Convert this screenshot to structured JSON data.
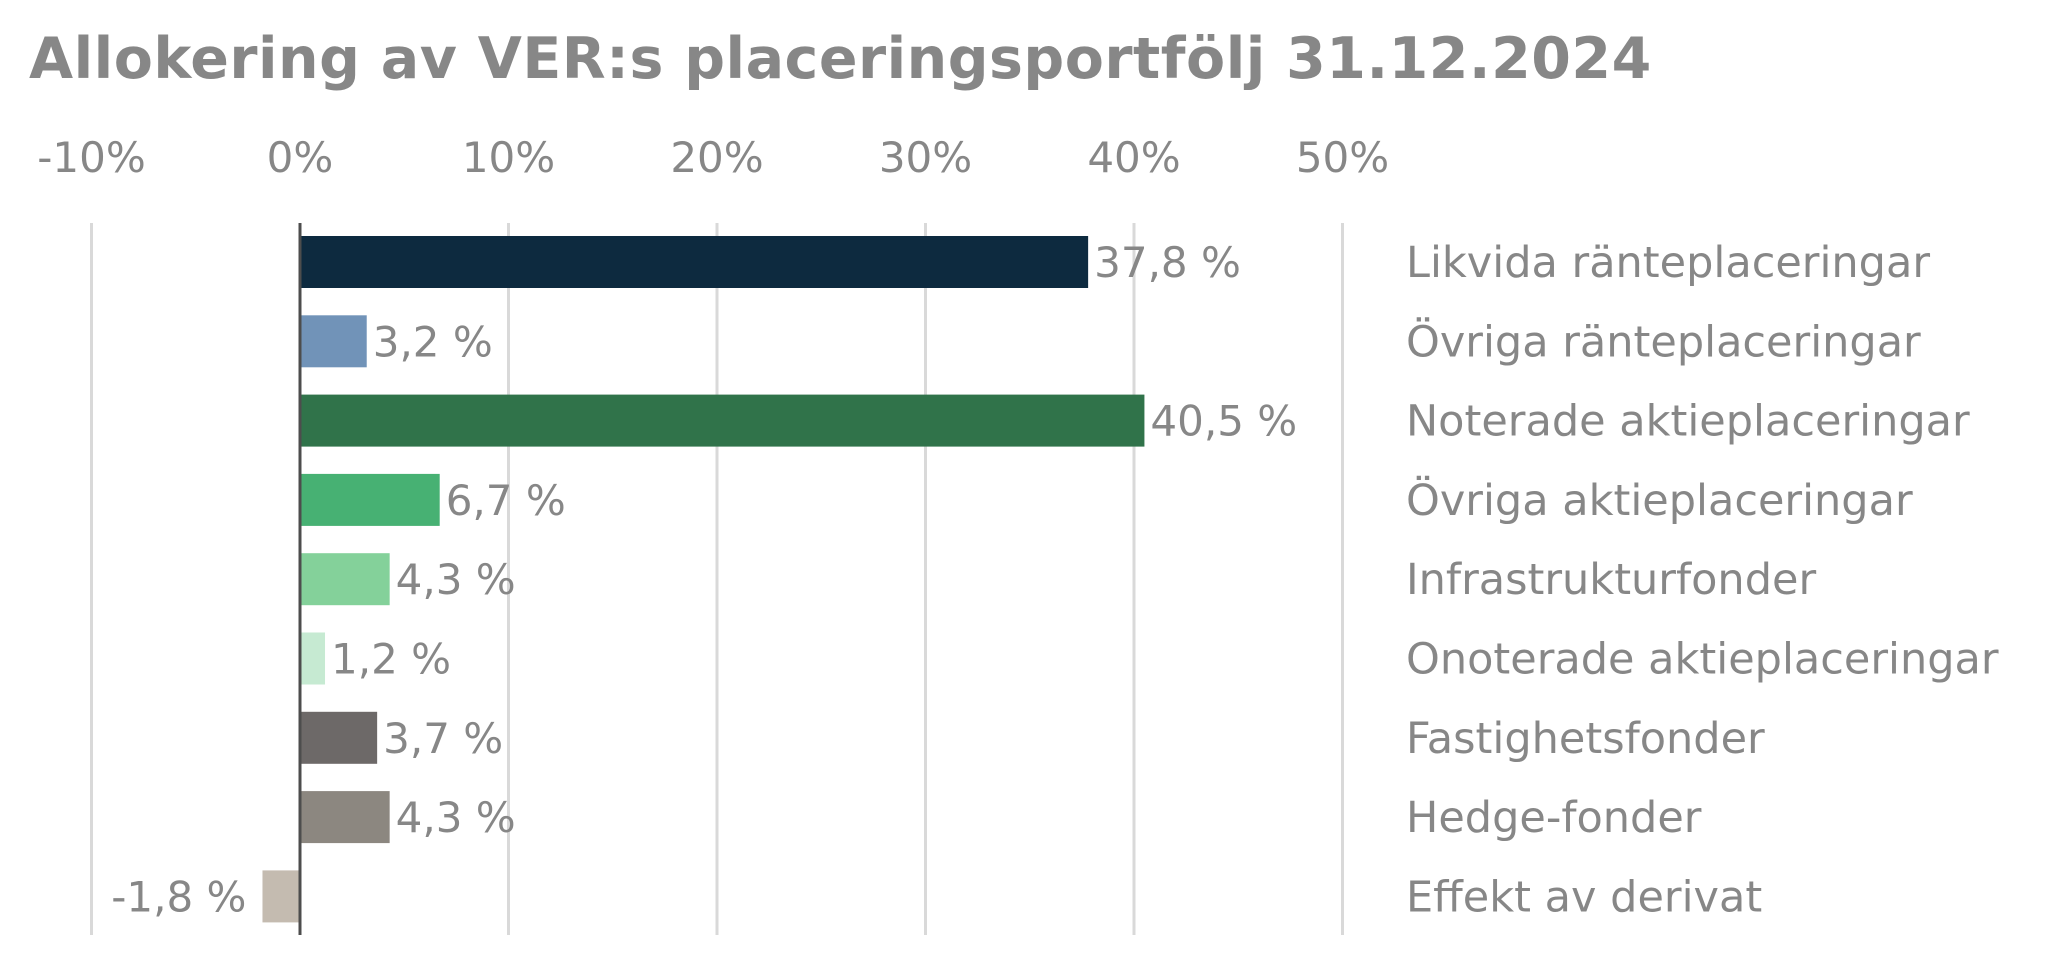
{
  "chart_data": {
    "type": "bar",
    "orientation": "horizontal",
    "title": "Allokering av VER:s placeringsportfölj 31.12.2024",
    "xlabel": "",
    "ylabel": "",
    "xlim": [
      -10,
      50
    ],
    "x_ticks": [
      -10,
      0,
      10,
      20,
      30,
      40,
      50
    ],
    "x_tick_labels": [
      "-10%",
      "0%",
      "10%",
      "20%",
      "30%",
      "40%",
      "50%"
    ],
    "x_axis_position": "top",
    "grid": true,
    "legend": "none",
    "category_labels_position": "right",
    "categories": [
      "Likvida ränteplaceringar",
      "Övriga ränteplaceringar",
      "Noterade aktieplaceringar",
      "Övriga aktieplaceringar",
      "Infrastrukturfonder",
      "Onoterade aktieplaceringar",
      "Fastighetsfonder",
      "Hedge-fonder",
      "Effekt av derivat"
    ],
    "values": [
      37.8,
      3.2,
      40.5,
      6.7,
      4.3,
      1.2,
      3.7,
      4.3,
      -1.8
    ],
    "value_labels": [
      "37,8 %",
      "3,2 %",
      "40,5 %",
      "6,7 %",
      "4,3 %",
      "1,2 %",
      "3,7 %",
      "4,3 %",
      "-1,8 %"
    ],
    "colors": [
      "#0d2a3f",
      "#7193b8",
      "#30734a",
      "#47b173",
      "#84d19a",
      "#c6ead2",
      "#6d6968",
      "#8c8780",
      "#c4bbb0"
    ],
    "gridline_color": "#d9d9d9",
    "zero_line_color": "#4d4d4d",
    "text_color": "#878787"
  }
}
